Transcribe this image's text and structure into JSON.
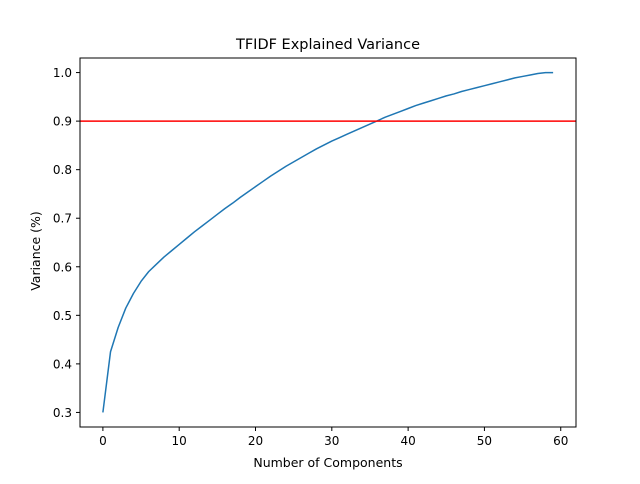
{
  "chart_data": {
    "type": "line",
    "title": "TFIDF Explained Variance",
    "xlabel": "Number of Components",
    "ylabel": "Variance (%)",
    "xlim": [
      -3,
      62
    ],
    "ylim": [
      0.27,
      1.03
    ],
    "xticks": [
      0,
      10,
      20,
      30,
      40,
      50,
      60
    ],
    "yticks": [
      0.3,
      0.4,
      0.5,
      0.6,
      0.7,
      0.8,
      0.9,
      1.0
    ],
    "xtick_labels": [
      "0",
      "10",
      "20",
      "30",
      "40",
      "50",
      "60"
    ],
    "ytick_labels": [
      "0.3",
      "0.4",
      "0.5",
      "0.6",
      "0.7",
      "0.8",
      "0.9",
      "1.0"
    ],
    "grid": false,
    "series": [
      {
        "color": "#1f77b4",
        "x": [
          0,
          1,
          2,
          3,
          4,
          5,
          6,
          7,
          8,
          9,
          10,
          11,
          12,
          13,
          14,
          15,
          16,
          17,
          18,
          19,
          20,
          21,
          22,
          23,
          24,
          25,
          26,
          27,
          28,
          29,
          30,
          31,
          32,
          33,
          34,
          35,
          36,
          37,
          38,
          39,
          40,
          41,
          42,
          43,
          44,
          45,
          46,
          47,
          48,
          49,
          50,
          51,
          52,
          53,
          54,
          55,
          56,
          57,
          58,
          59
        ],
        "values": [
          0.3,
          0.425,
          0.475,
          0.515,
          0.545,
          0.57,
          0.59,
          0.605,
          0.62,
          0.633,
          0.646,
          0.659,
          0.672,
          0.684,
          0.696,
          0.708,
          0.72,
          0.731,
          0.743,
          0.754,
          0.765,
          0.776,
          0.787,
          0.797,
          0.807,
          0.816,
          0.825,
          0.834,
          0.843,
          0.851,
          0.859,
          0.866,
          0.873,
          0.88,
          0.887,
          0.894,
          0.901,
          0.908,
          0.914,
          0.92,
          0.926,
          0.932,
          0.937,
          0.942,
          0.947,
          0.952,
          0.956,
          0.961,
          0.965,
          0.969,
          0.973,
          0.977,
          0.981,
          0.985,
          0.989,
          0.992,
          0.995,
          0.998,
          1.0,
          1.0
        ]
      }
    ],
    "hlines": [
      {
        "y": 0.9,
        "color": "#ff0000"
      }
    ]
  }
}
